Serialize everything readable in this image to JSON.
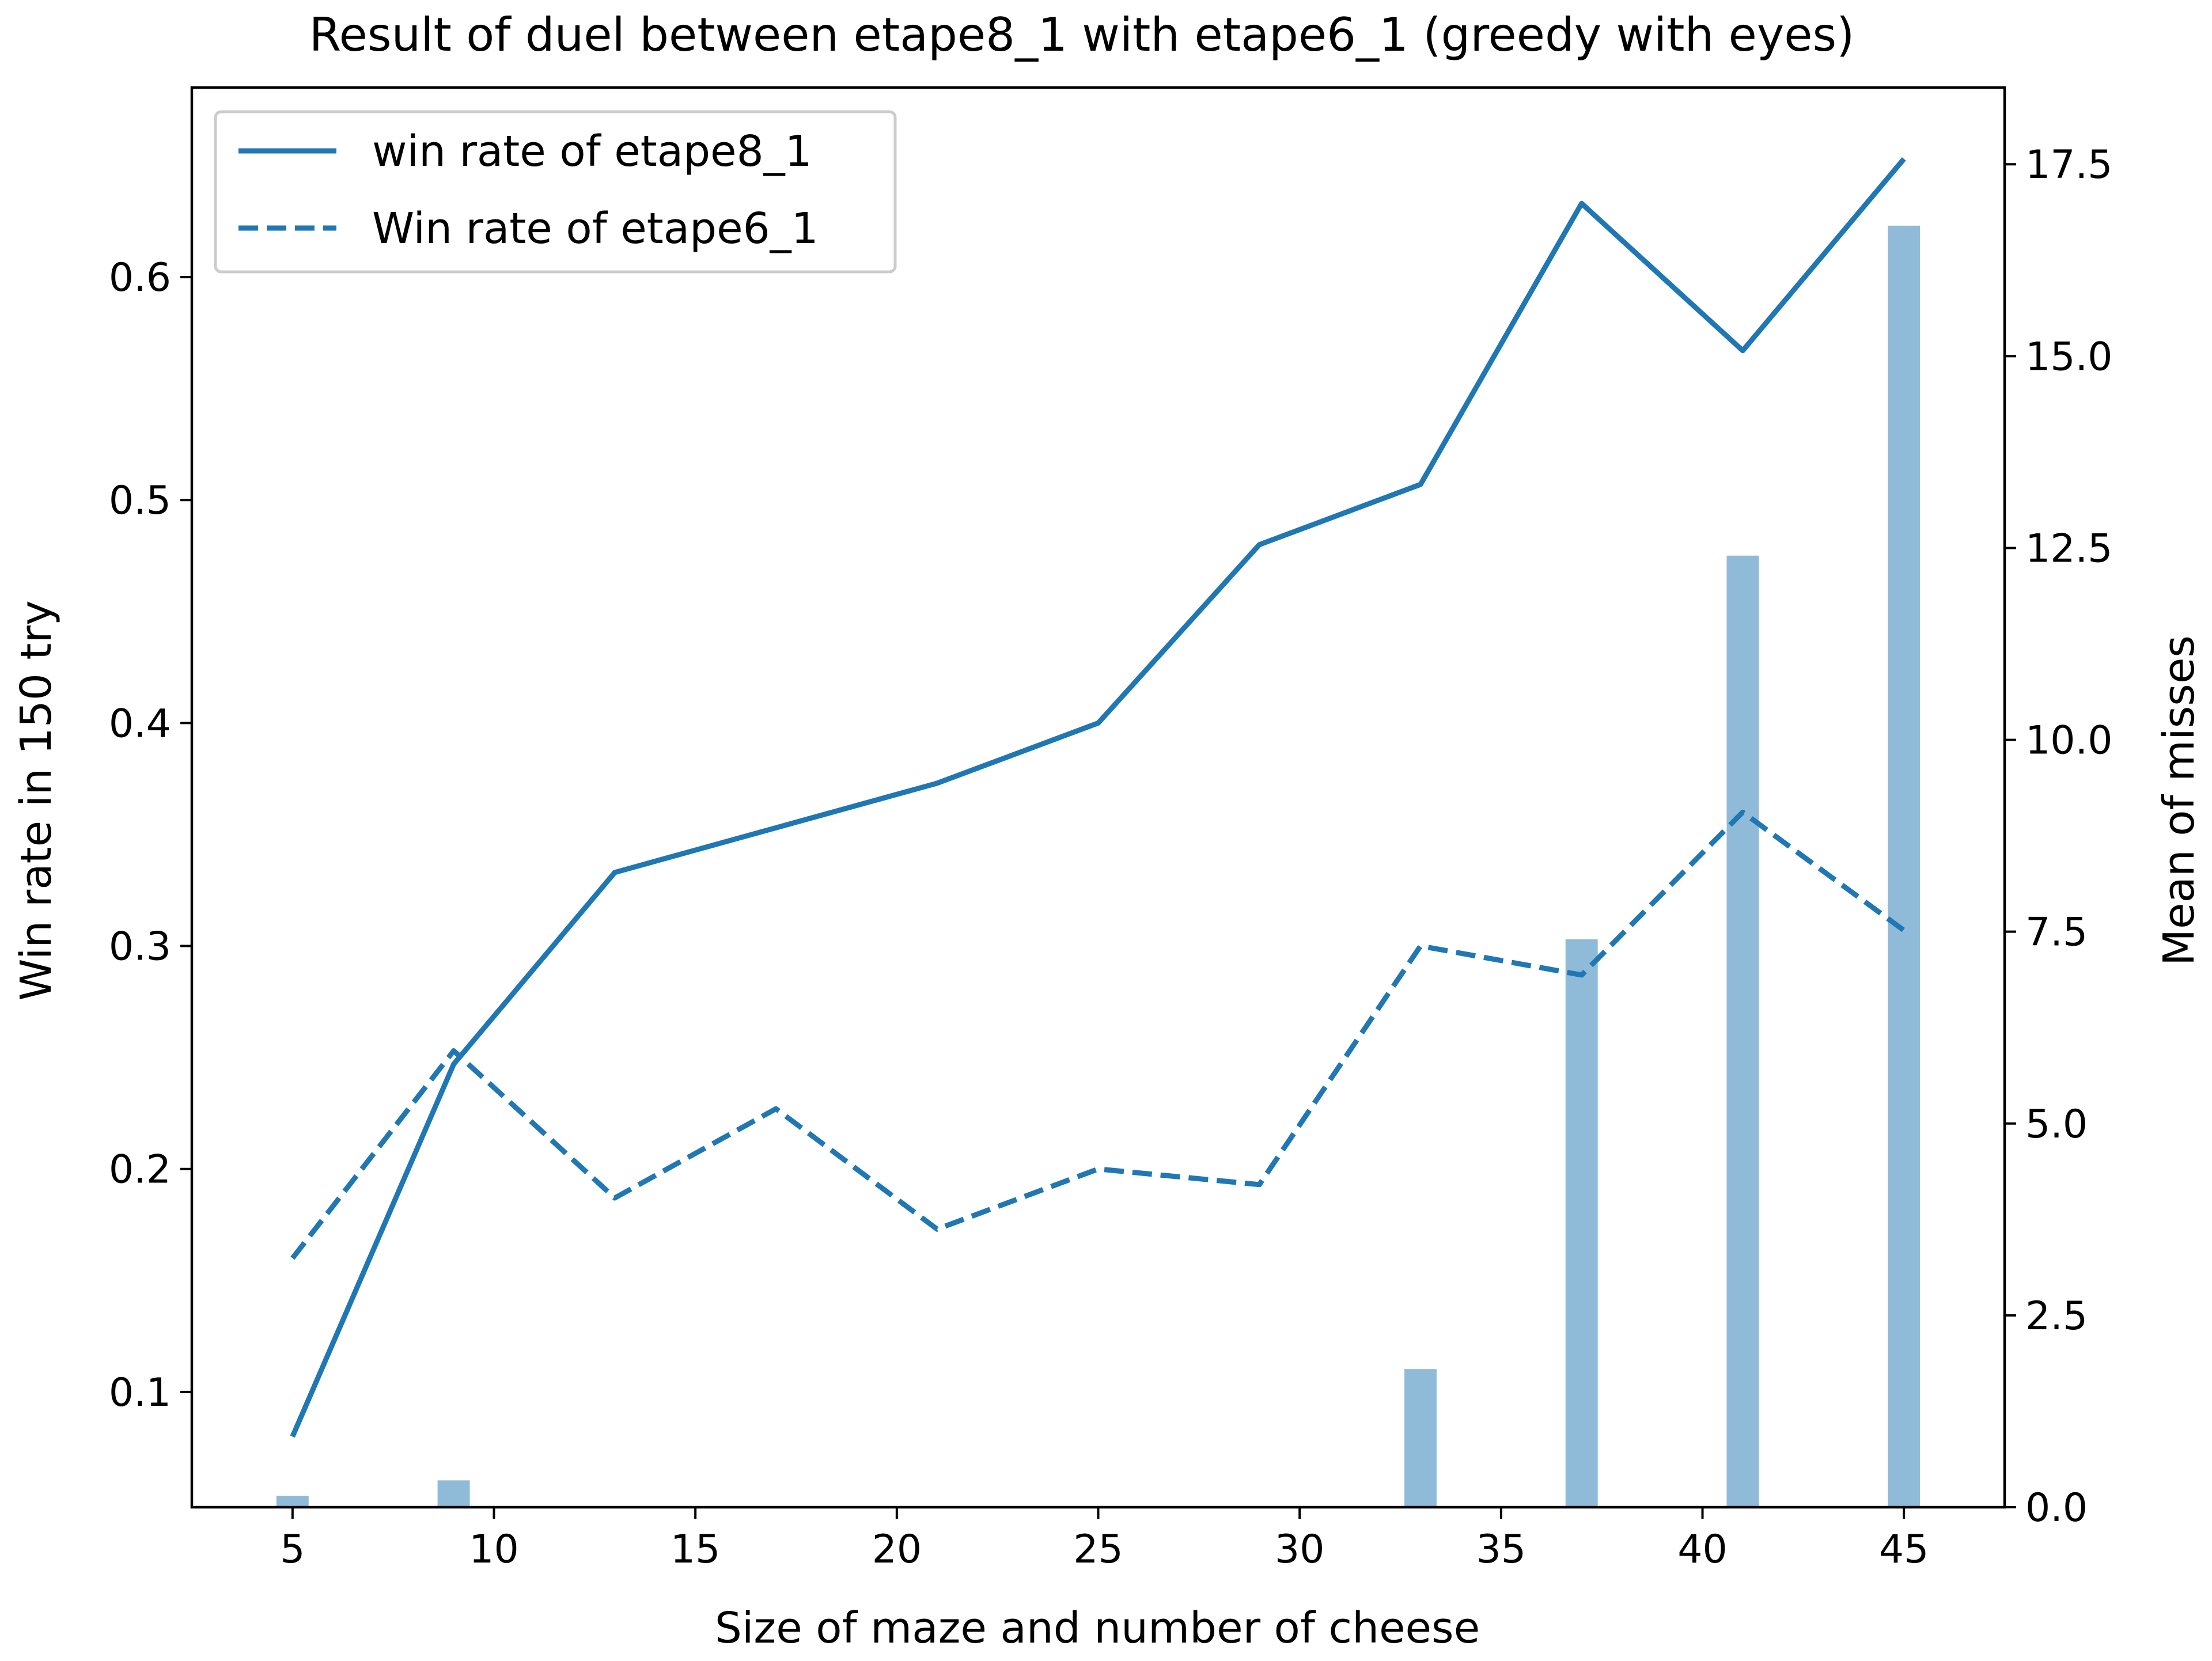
{
  "chart_data": {
    "type": "line",
    "title": "Result of duel between etape8_1 with etape6_1 (greedy with eyes)",
    "xlabel": "Size of maze and number of cheese",
    "ylabel": "Win rate in 150 try",
    "y2label": "Mean of misses",
    "xlim": [
      2.5,
      47.5
    ],
    "ylim": [
      0.0483,
      0.685
    ],
    "y2lim": [
      0,
      18.5
    ],
    "xticks": [
      5,
      10,
      15,
      20,
      25,
      30,
      35,
      40,
      45
    ],
    "yticks": [
      0.1,
      0.2,
      0.3,
      0.4,
      0.5,
      0.6
    ],
    "y2ticks": [
      0.0,
      2.5,
      5.0,
      7.5,
      10.0,
      12.5,
      15.0,
      17.5
    ],
    "x": [
      5,
      9,
      13,
      17,
      21,
      25,
      29,
      33,
      37,
      41,
      45
    ],
    "series": [
      {
        "name": "win rate of etape8_1",
        "axis": "left",
        "style": "solid",
        "color": "#1f77b4",
        "values": [
          0.08,
          0.247,
          0.333,
          0.353,
          0.373,
          0.4,
          0.48,
          0.507,
          0.633,
          0.567,
          0.653
        ]
      },
      {
        "name": "Win rate of etape6_1",
        "axis": "left",
        "style": "dashed",
        "color": "#1f77b4",
        "values": [
          0.16,
          0.253,
          0.187,
          0.227,
          0.173,
          0.2,
          0.193,
          0.3,
          0.287,
          0.36,
          0.307
        ]
      }
    ],
    "bars": {
      "axis": "right",
      "color": "#1f77b4",
      "opacity": 0.5,
      "bar_width": 0.8,
      "x": [
        5,
        9,
        33,
        37,
        41,
        45
      ],
      "values": [
        0.15,
        0.35,
        1.8,
        7.4,
        12.4,
        16.7
      ]
    },
    "legend_position": "top-left",
    "grid": false
  }
}
